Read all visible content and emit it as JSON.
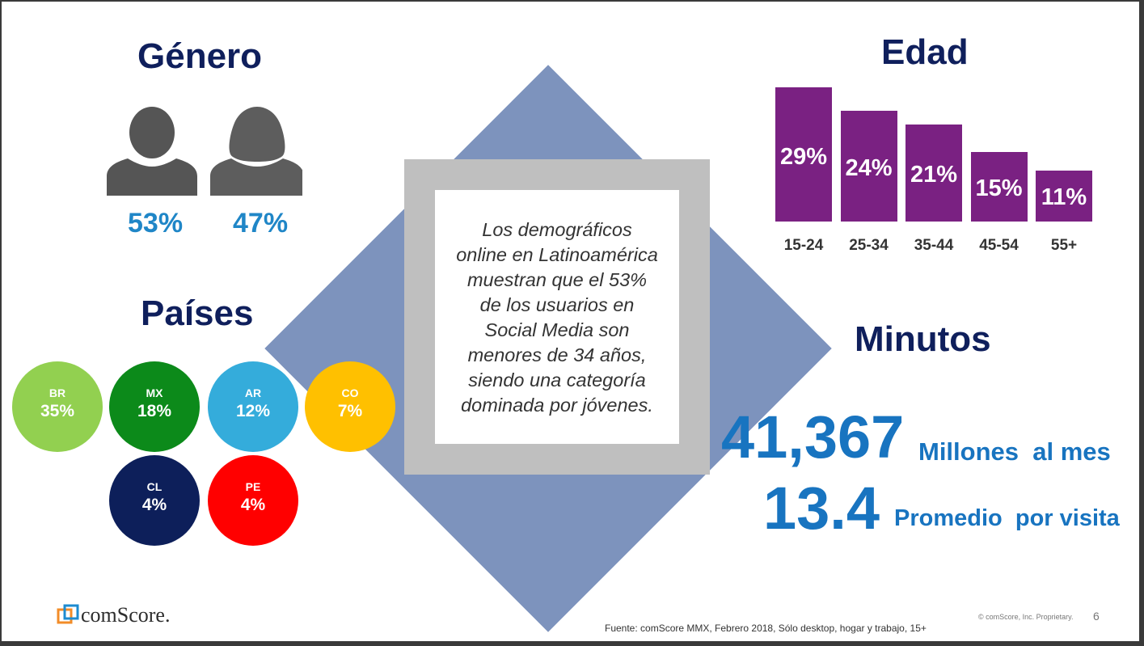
{
  "genero": {
    "title": "Género",
    "male_pct": "53%",
    "female_pct": "47%"
  },
  "center_text": "Los demográficos\nonline en Latinoamérica\nmuestran que el 53%\nde los usuarios en\nSocial Media son\nmenores de 34 años,\nsiendo una categoría\ndominada por jóvenes.",
  "paises": {
    "title": "Países",
    "items": [
      {
        "code": "BR",
        "value": "35%",
        "color": "#92d050"
      },
      {
        "code": "MX",
        "value": "18%",
        "color": "#0c8a1a"
      },
      {
        "code": "AR",
        "value": "12%",
        "color": "#34acdb"
      },
      {
        "code": "CO",
        "value": "7%",
        "color": "#ffc000"
      },
      {
        "code": "CL",
        "value": "4%",
        "color": "#0d1f5a"
      },
      {
        "code": "PE",
        "value": "4%",
        "color": "#ff0000"
      }
    ]
  },
  "edad": {
    "title": "Edad"
  },
  "chart_data": {
    "type": "bar",
    "title": "Edad",
    "categories": [
      "15-24",
      "25-34",
      "35-44",
      "45-54",
      "55+"
    ],
    "values": [
      29,
      24,
      21,
      15,
      11
    ],
    "labels": [
      "29%",
      "24%",
      "21%",
      "15%",
      "11%"
    ],
    "ylim": [
      0,
      29
    ],
    "color": "#7a2182",
    "xlabel": "",
    "ylabel": "",
    "grid": false
  },
  "minutos": {
    "title": "Minutos",
    "total_value": "41,367",
    "total_label": "Millones  al mes",
    "avg_value": "13.4",
    "avg_label": "Promedio  por visita"
  },
  "footer": {
    "logo_text": "comScore.",
    "source": "Fuente: comScore MMX, Febrero 2018, Sólo desktop, hogar y trabajo, 15+",
    "copyright": "© comScore, Inc. Proprietary.",
    "page_number": "6"
  },
  "colors": {
    "accent_blue": "#1f86c7",
    "heading_navy": "#0f1f5c",
    "bar_purple": "#7a2182",
    "diamond": "#7d93bd"
  }
}
